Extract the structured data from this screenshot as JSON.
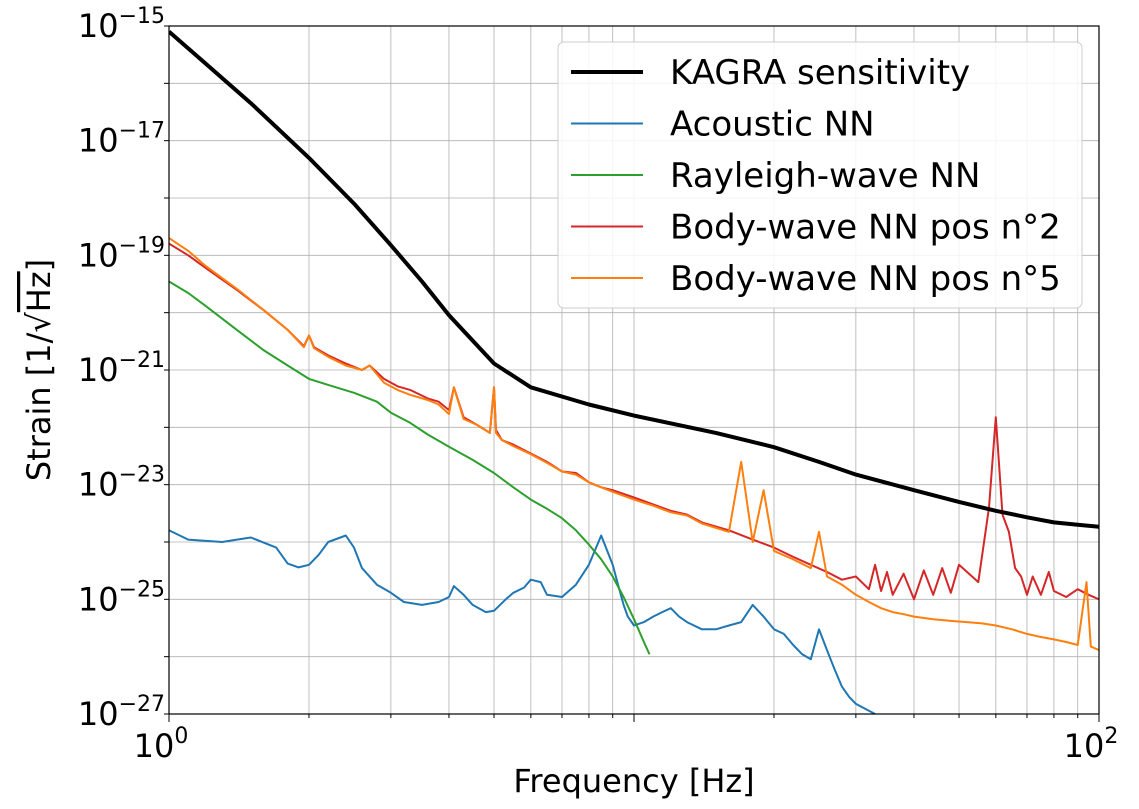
{
  "chart_data": {
    "type": "line",
    "title": "",
    "xlabel": "Frequency [Hz]",
    "ylabel_prefix": "Strain [1/",
    "ylabel_root": "√",
    "ylabel_unit": "Hz",
    "ylabel_suffix": "]",
    "xscale": "log",
    "yscale": "log",
    "xlim": [
      1,
      100
    ],
    "ylim": [
      1e-27,
      1e-15
    ],
    "grid": true,
    "legend_position": "top-right",
    "x_ticks": [
      {
        "base": "10",
        "exp": "0",
        "value": 1
      },
      {
        "base": "10",
        "exp": "2",
        "value": 100
      }
    ],
    "y_ticks": [
      {
        "base": "10",
        "exp": "−15",
        "value": -15
      },
      {
        "base": "10",
        "exp": "−17",
        "value": -17
      },
      {
        "base": "10",
        "exp": "−19",
        "value": -19
      },
      {
        "base": "10",
        "exp": "−21",
        "value": -21
      },
      {
        "base": "10",
        "exp": "−23",
        "value": -23
      },
      {
        "base": "10",
        "exp": "−25",
        "value": -25
      },
      {
        "base": "10",
        "exp": "−27",
        "value": -27
      }
    ],
    "series": [
      {
        "name": "KAGRA sensitivity",
        "color": "#000000",
        "width": "thick",
        "x": [
          1,
          1.2,
          1.5,
          2,
          2.5,
          3,
          3.5,
          4,
          5,
          6,
          8,
          10,
          15,
          20,
          25,
          30,
          40,
          50,
          60,
          70,
          80,
          90,
          100
        ],
        "y": [
          8e-16,
          2.2e-16,
          4.5e-17,
          5e-18,
          8e-19,
          1.5e-19,
          3.5e-20,
          9e-21,
          1.3e-21,
          5e-22,
          2.5e-22,
          1.6e-22,
          8e-23,
          4.5e-23,
          2.5e-23,
          1.5e-23,
          8e-24,
          5e-24,
          3.5e-24,
          2.7e-24,
          2.2e-24,
          2e-24,
          1.85e-24
        ]
      },
      {
        "name": "Acoustic NN",
        "color": "#1f77b4",
        "width": "thin",
        "x": [
          1,
          1.1,
          1.3,
          1.4,
          1.5,
          1.7,
          1.8,
          1.9,
          2.0,
          2.1,
          2.2,
          2.4,
          2.5,
          2.6,
          2.8,
          3.0,
          3.2,
          3.5,
          3.8,
          4.0,
          4.1,
          4.3,
          4.5,
          4.8,
          5.0,
          5.3,
          5.5,
          5.8,
          6.0,
          6.3,
          6.5,
          7.0,
          7.5,
          8.0,
          8.5,
          9.0,
          9.3,
          9.5,
          9.7,
          10,
          10.5,
          11,
          11.5,
          12,
          12.5,
          13,
          14,
          15,
          16,
          17,
          18,
          19,
          20,
          21,
          22,
          23,
          24,
          25,
          26,
          27,
          28,
          29,
          30,
          33
        ],
        "y": [
          1.6e-24,
          1.1e-24,
          1e-24,
          1.1e-24,
          1.2e-24,
          8e-25,
          4.2e-25,
          3.6e-25,
          4e-25,
          6e-25,
          1e-24,
          1.3e-24,
          8e-25,
          3.5e-25,
          1.8e-25,
          1.3e-25,
          9e-26,
          8e-26,
          9e-26,
          1.1e-25,
          1.7e-25,
          1.2e-25,
          8e-26,
          6e-26,
          6.3e-26,
          1e-25,
          1.3e-25,
          1.6e-25,
          2.2e-25,
          2e-25,
          1.2e-25,
          1.1e-25,
          1.8e-25,
          4e-25,
          1.3e-24,
          4e-25,
          1.5e-25,
          8e-26,
          5e-26,
          3.5e-26,
          4e-26,
          5e-26,
          6e-26,
          7e-26,
          5e-26,
          4e-26,
          3e-26,
          3e-26,
          3.5e-26,
          4e-26,
          8e-26,
          5e-26,
          3e-26,
          2.5e-26,
          1.6e-26,
          1.1e-26,
          9e-27,
          3e-26,
          1.3e-26,
          6e-27,
          3e-27,
          2e-27,
          1.5e-27,
          1e-27
        ]
      },
      {
        "name": "Rayleigh-wave NN",
        "color": "#2ca02c",
        "width": "thin",
        "x": [
          1,
          1.1,
          1.2,
          1.4,
          1.6,
          1.8,
          2.0,
          2.2,
          2.5,
          2.8,
          3.0,
          3.3,
          3.6,
          4.0,
          4.5,
          5.0,
          5.5,
          6.0,
          6.5,
          7.0,
          7.5,
          8.0,
          8.5,
          9.0,
          9.5,
          10.0,
          10.5,
          10.8
        ],
        "y": [
          3.5e-20,
          2.2e-20,
          1.3e-20,
          5e-21,
          2.2e-21,
          1.2e-21,
          7e-22,
          5.5e-22,
          4e-22,
          2.8e-22,
          1.8e-22,
          1.2e-22,
          7.5e-23,
          4.6e-23,
          2.7e-23,
          1.6e-23,
          9e-24,
          5.5e-24,
          3.8e-24,
          2.6e-24,
          1.6e-24,
          9e-25,
          5e-25,
          2.5e-25,
          1.1e-25,
          4.5e-26,
          1.8e-26,
          1.1e-26
        ]
      },
      {
        "name": "Body-wave NN pos n°2",
        "color": "#d62728",
        "width": "thin",
        "x": [
          1,
          1.1,
          1.2,
          1.4,
          1.6,
          1.8,
          1.95,
          2.0,
          2.05,
          2.2,
          2.4,
          2.6,
          2.7,
          2.9,
          3.1,
          3.3,
          3.6,
          3.8,
          4.0,
          4.1,
          4.3,
          4.6,
          4.9,
          5.0,
          5.05,
          5.2,
          5.5,
          6.0,
          6.5,
          7.0,
          7.5,
          8.0,
          8.5,
          9.0,
          10,
          11,
          12,
          13,
          14,
          16,
          18,
          20,
          22,
          24,
          26,
          28,
          30,
          32,
          33,
          34,
          35,
          36,
          38,
          40,
          42,
          44,
          46,
          48,
          50,
          55,
          58,
          60,
          62,
          64,
          66,
          68,
          70,
          72,
          75,
          78,
          80,
          85,
          90,
          95,
          100
        ],
        "y": [
          1.6e-19,
          1e-19,
          6e-20,
          2.5e-20,
          1.1e-20,
          5e-21,
          2.6e-21,
          4e-21,
          2.5e-21,
          1.8e-21,
          1.3e-21,
          1e-21,
          1.2e-21,
          7e-22,
          5.2e-22,
          4.5e-22,
          3.2e-22,
          2.8e-22,
          2e-22,
          5e-22,
          1.5e-22,
          1.1e-22,
          8e-23,
          5e-22,
          9e-23,
          6e-23,
          5e-23,
          3.5e-23,
          2.5e-23,
          1.7e-23,
          1.6e-23,
          1.1e-23,
          9e-24,
          8e-24,
          6e-24,
          4.5e-24,
          3.5e-24,
          3e-24,
          2.2e-24,
          1.6e-24,
          1.1e-24,
          8e-25,
          5.5e-25,
          4e-25,
          3e-25,
          2.2e-25,
          2.5e-25,
          1.5e-25,
          4e-25,
          1.4e-25,
          3e-25,
          1.2e-25,
          2.8e-25,
          1e-25,
          3.2e-25,
          1.2e-25,
          3.5e-25,
          1.3e-25,
          4e-25,
          2e-25,
          4e-24,
          1.5e-22,
          3e-24,
          1.5e-24,
          3.5e-25,
          2.5e-25,
          1.2e-25,
          2.5e-25,
          1.2e-25,
          3e-25,
          1.4e-25,
          1.1e-25,
          1.5e-25,
          1.2e-25,
          1e-25
        ]
      },
      {
        "name": "Body-wave NN pos n°5",
        "color": "#ff7f0e",
        "width": "thin",
        "x": [
          1,
          1.1,
          1.2,
          1.4,
          1.6,
          1.8,
          1.95,
          2.0,
          2.05,
          2.2,
          2.4,
          2.6,
          2.7,
          2.9,
          3.1,
          3.3,
          3.6,
          3.8,
          4.0,
          4.1,
          4.3,
          4.6,
          4.9,
          5.0,
          5.05,
          5.2,
          5.5,
          6.0,
          6.5,
          7.0,
          7.5,
          8.0,
          8.5,
          9.0,
          10,
          11,
          12,
          13,
          14,
          16,
          17,
          18,
          19,
          20,
          22,
          24,
          25,
          26,
          28,
          30,
          32,
          34,
          36,
          38,
          40,
          44,
          48,
          52,
          56,
          60,
          65,
          70,
          75,
          80,
          85,
          90,
          94,
          96,
          100
        ],
        "y": [
          2e-19,
          1.2e-19,
          6.5e-20,
          2.6e-20,
          1.1e-20,
          5e-21,
          2.5e-21,
          4e-21,
          2.4e-21,
          1.7e-21,
          1.2e-21,
          1e-21,
          1.2e-21,
          6e-22,
          4.5e-22,
          3.7e-22,
          3e-22,
          2.5e-22,
          1.7e-22,
          5e-22,
          1.4e-22,
          1.1e-22,
          8e-23,
          5e-22,
          8e-23,
          6e-23,
          4.7e-23,
          3.4e-23,
          2.4e-23,
          1.7e-23,
          1.5e-23,
          1.1e-23,
          9e-24,
          7.5e-24,
          5.5e-24,
          4.3e-24,
          3.3e-24,
          2.9e-24,
          2.1e-24,
          1.5e-24,
          2.5e-23,
          1e-24,
          8e-24,
          7e-25,
          5e-25,
          3.5e-25,
          1.5e-24,
          2.5e-25,
          1.8e-25,
          1.2e-25,
          9e-26,
          7e-26,
          6e-26,
          5.5e-26,
          5e-26,
          4.5e-26,
          4.2e-26,
          4e-26,
          3.8e-26,
          3.5e-26,
          3e-26,
          2.5e-26,
          2.2e-26,
          2e-26,
          1.8e-26,
          1.6e-26,
          2e-25,
          1.5e-26,
          1.3e-26
        ]
      }
    ]
  }
}
